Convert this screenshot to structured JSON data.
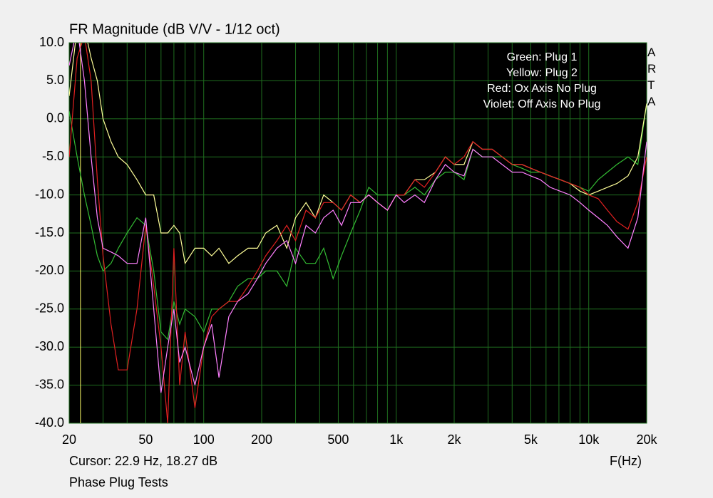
{
  "chart_data": {
    "type": "line",
    "title": "FR Magnitude (dB V/V - 1/12 oct)",
    "x_label": "F(Hz)",
    "cursor_text": "Cursor: 22.9 Hz, 18.27 dB",
    "cursor_x": 22.9,
    "cursor_color": "#ffff66",
    "footer": "Phase Plug Tests",
    "brand": "ARTA",
    "x_log": true,
    "grid": true,
    "grid_color": "#1f6e1f",
    "legend_position": "upper right",
    "xlim": [
      20,
      20000
    ],
    "ylim": [
      -40,
      10
    ],
    "xticks": [
      20,
      50,
      100,
      200,
      500,
      {
        "value": 1000,
        "label": "1k"
      },
      {
        "value": 2000,
        "label": "2k"
      },
      {
        "value": 5000,
        "label": "5k"
      },
      {
        "value": 10000,
        "label": "10k"
      },
      {
        "value": 20000,
        "label": "20k"
      }
    ],
    "xminorticks": [
      30,
      40,
      60,
      70,
      80,
      90,
      300,
      400,
      600,
      700,
      800,
      900,
      3000,
      4000,
      6000,
      7000,
      8000,
      9000
    ],
    "yticks": [
      {
        "value": 10,
        "label": "10.0"
      },
      {
        "value": 5,
        "label": "5.0"
      },
      {
        "value": 0,
        "label": "0.0"
      },
      {
        "value": -5,
        "label": "-5.0"
      },
      {
        "value": -10,
        "label": "-10.0"
      },
      {
        "value": -15,
        "label": "-15.0"
      },
      {
        "value": -20,
        "label": "-20.0"
      },
      {
        "value": -25,
        "label": "-25.0"
      },
      {
        "value": -30,
        "label": "-30.0"
      },
      {
        "value": -35,
        "label": "-35.0"
      },
      {
        "value": -40,
        "label": "-40.0"
      }
    ],
    "x": [
      20,
      22,
      24,
      26,
      28,
      30,
      33,
      36,
      40,
      45,
      50,
      55,
      60,
      65,
      70,
      75,
      80,
      90,
      100,
      110,
      120,
      135,
      150,
      170,
      190,
      210,
      240,
      270,
      300,
      340,
      380,
      420,
      470,
      520,
      580,
      650,
      720,
      800,
      900,
      1000,
      1100,
      1250,
      1400,
      1600,
      1800,
      2000,
      2250,
      2500,
      2800,
      3150,
      3550,
      4000,
      4500,
      5000,
      5600,
      6300,
      7100,
      8000,
      9000,
      10000,
      11200,
      12500,
      14000,
      16000,
      18000,
      20000
    ],
    "series": [
      {
        "name": "Green: Plug 1",
        "color": "#33bb33",
        "values": [
          1,
          -5,
          -10,
          -14,
          -18,
          -20,
          -19,
          -17,
          -15,
          -13,
          -14,
          -20,
          -28,
          -29,
          -24,
          -27,
          -25,
          -26,
          -28,
          -25,
          -25,
          -24,
          -22,
          -21,
          -21,
          -20,
          -20,
          -22,
          -17,
          -19,
          -19,
          -17,
          -21,
          -18,
          -15,
          -12,
          -9,
          -10,
          -10,
          -10,
          -10,
          -9,
          -10,
          -8,
          -7,
          -7,
          -8,
          -4,
          -5,
          -5,
          -5,
          -6,
          -6.5,
          -7,
          -7,
          -7.5,
          -8,
          -8.5,
          -9,
          -9.5,
          -8,
          -7,
          -6,
          -5,
          -6,
          2
        ]
      },
      {
        "name": "Yellow: Plug 2",
        "color": "#ffff99",
        "values": [
          3,
          12,
          12,
          8,
          5,
          0,
          -3,
          -5,
          -6,
          -8,
          -10,
          -10,
          -15,
          -15,
          -14,
          -15,
          -19,
          -17,
          -17,
          -18,
          -17,
          -19,
          -18,
          -17,
          -17,
          -15,
          -14,
          -17,
          -13,
          -11,
          -13,
          -10,
          -11,
          -12,
          -10,
          -11,
          -10,
          -11,
          -12,
          -10,
          -10,
          -8,
          -8,
          -7,
          -5,
          -6,
          -6,
          -3,
          -4,
          -4,
          -5,
          -6,
          -6,
          -6.5,
          -7,
          -7.5,
          -8,
          -8.5,
          -9.5,
          -10,
          -9.5,
          -9,
          -8.5,
          -7.5,
          -5,
          2
        ]
      },
      {
        "name": "Red: Ox Axis No Plug",
        "color": "#e02020",
        "values": [
          -5,
          8,
          11,
          5,
          -8,
          -18,
          -27,
          -33,
          -33,
          -25,
          -14,
          -22,
          -30,
          -40,
          -17,
          -35,
          -28,
          -38,
          -30,
          -26,
          -25,
          -24,
          -24,
          -22,
          -20,
          -18,
          -16,
          -14,
          -16,
          -12,
          -13,
          -11,
          -11,
          -12,
          -10,
          -11,
          -10,
          -11,
          -12,
          -10,
          -10,
          -8,
          -9,
          -7,
          -5,
          -6,
          -5,
          -3,
          -4,
          -4,
          -5,
          -6,
          -6,
          -6.5,
          -7,
          -7.5,
          -8,
          -8.5,
          -9,
          -10,
          -10.5,
          -12,
          -13.5,
          -14.5,
          -11,
          -5
        ]
      },
      {
        "name": "Violet: Off Axis No Plug",
        "color": "#ff80ff",
        "values": [
          7,
          12,
          5,
          -5,
          -13,
          -17,
          -17.5,
          -18,
          -19,
          -19,
          -13,
          -25,
          -36,
          -30,
          -25,
          -32,
          -30,
          -35,
          -30,
          -27,
          -34,
          -26,
          -24,
          -23,
          -21,
          -19,
          -17,
          -16,
          -19,
          -14,
          -15,
          -13,
          -12,
          -14,
          -11,
          -11,
          -10,
          -11,
          -12,
          -10,
          -11,
          -10,
          -11,
          -8,
          -6,
          -7,
          -7.5,
          -4,
          -5,
          -5,
          -6,
          -7,
          -7,
          -7.5,
          -8,
          -9,
          -9.5,
          -10,
          -11,
          -12,
          -13,
          -14,
          -15.5,
          -17,
          -13,
          -3
        ]
      }
    ]
  }
}
